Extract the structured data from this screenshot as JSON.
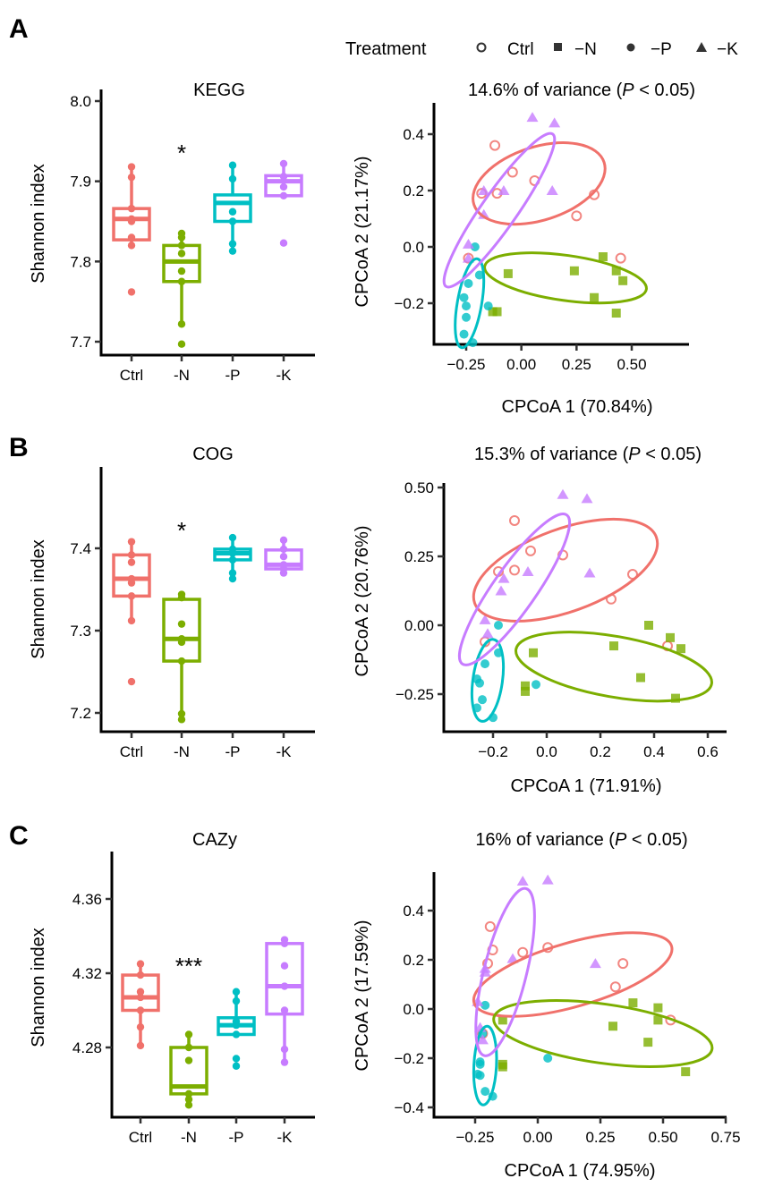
{
  "legend": {
    "title": "Treatment",
    "items": [
      {
        "label": "Ctrl",
        "shape": "open-circle"
      },
      {
        "label": "−N",
        "shape": "square"
      },
      {
        "label": "−P",
        "shape": "circle"
      },
      {
        "label": "−K",
        "shape": "triangle"
      }
    ]
  },
  "colors": {
    "Ctrl": "#F0716B",
    "-N": "#7CAE00",
    "-P": "#00BFC4",
    "-K": "#C77CFF"
  },
  "chart_data": [
    {
      "panel": "A",
      "type": "box",
      "title": "KEGG",
      "ylabel": "Shannon index",
      "categories": [
        "Ctrl",
        "-N",
        "-P",
        "-K"
      ],
      "yticks": [
        "7.7",
        "7.8",
        "7.9",
        "8.0"
      ],
      "ylim": [
        7.68,
        8.02
      ],
      "significance": {
        "category": "-N",
        "label": "*"
      },
      "boxes": [
        {
          "q1": 7.827,
          "median": 7.853,
          "q3": 7.866,
          "whisker_low": 7.82,
          "whisker_high": 7.918,
          "points": [
            7.918,
            7.905,
            7.866,
            7.853,
            7.85,
            7.83,
            7.82,
            7.762
          ]
        },
        {
          "q1": 7.775,
          "median": 7.8,
          "q3": 7.82,
          "whisker_low": 7.722,
          "whisker_high": 7.835,
          "points": [
            7.835,
            7.83,
            7.82,
            7.81,
            7.788,
            7.775,
            7.722,
            7.697
          ]
        },
        {
          "q1": 7.85,
          "median": 7.873,
          "q3": 7.883,
          "whisker_low": 7.813,
          "whisker_high": 7.92,
          "points": [
            7.92,
            7.903,
            7.862,
            7.85,
            7.822,
            7.813
          ]
        },
        {
          "q1": 7.882,
          "median": 7.9,
          "q3": 7.907,
          "whisker_low": 7.882,
          "whisker_high": 7.922,
          "points": [
            7.922,
            7.906,
            7.893,
            7.882,
            7.823
          ]
        }
      ]
    },
    {
      "panel": "A",
      "type": "scatter",
      "title_prefix": "14.6% of variance (",
      "title_italic": "P",
      "title_suffix": " < 0.05)",
      "xlabel": "CPCoA 1 (70.84%)",
      "ylabel": "CPCoA 2 (21.17%)",
      "xticks": [
        -0.25,
        0.0,
        0.25,
        0.5
      ],
      "xtick_labels": [
        "−0.25",
        "0.00",
        "0.25",
        "0.50"
      ],
      "yticks": [
        -0.2,
        0.0,
        0.2,
        0.4
      ],
      "ytick_labels": [
        "−0.2",
        "0.0",
        "0.2",
        "0.4"
      ],
      "xlim": [
        -0.33,
        0.65
      ],
      "ylim": [
        -0.35,
        0.49
      ],
      "series": [
        {
          "name": "Ctrl",
          "points": [
            [
              -0.12,
              0.36
            ],
            [
              -0.04,
              0.265
            ],
            [
              -0.18,
              0.19
            ],
            [
              -0.11,
              0.19
            ],
            [
              0.06,
              0.235
            ],
            [
              0.33,
              0.185
            ],
            [
              0.25,
              0.11
            ],
            [
              -0.24,
              -0.04
            ],
            [
              0.45,
              -0.04
            ]
          ],
          "ellipse": {
            "cx": 0.08,
            "cy": 0.225,
            "rx": 0.31,
            "ry": 0.13,
            "angle_deg": -18
          }
        },
        {
          "name": "-N",
          "points": [
            [
              -0.06,
              -0.095
            ],
            [
              0.24,
              -0.085
            ],
            [
              0.37,
              -0.035
            ],
            [
              0.43,
              -0.085
            ],
            [
              0.46,
              -0.12
            ],
            [
              0.33,
              -0.18
            ],
            [
              -0.13,
              -0.23
            ],
            [
              -0.11,
              -0.23
            ],
            [
              0.43,
              -0.235
            ]
          ],
          "ellipse": {
            "cx": 0.2,
            "cy": -0.11,
            "rx": 0.37,
            "ry": 0.08,
            "angle_deg": 8
          }
        },
        {
          "name": "-P",
          "points": [
            [
              -0.21,
              0.0
            ],
            [
              -0.19,
              -0.1
            ],
            [
              -0.24,
              -0.13
            ],
            [
              -0.26,
              -0.18
            ],
            [
              -0.25,
              -0.21
            ],
            [
              -0.25,
              -0.25
            ],
            [
              -0.26,
              -0.31
            ],
            [
              -0.22,
              -0.34
            ],
            [
              -0.15,
              -0.21
            ]
          ],
          "ellipse": {
            "cx": -0.235,
            "cy": -0.2,
            "rx": 0.055,
            "ry": 0.16,
            "angle_deg": 10
          }
        },
        {
          "name": "-K",
          "points": [
            [
              0.05,
              0.46
            ],
            [
              0.15,
              0.44
            ],
            [
              -0.17,
              0.2
            ],
            [
              -0.08,
              0.2
            ],
            [
              0.14,
              0.2
            ],
            [
              -0.17,
              0.115
            ],
            [
              -0.24,
              0.01
            ],
            [
              -0.24,
              -0.04
            ]
          ],
          "ellipse": {
            "cx": -0.1,
            "cy": 0.13,
            "rx": 0.08,
            "ry": 0.33,
            "angle_deg": 35
          }
        }
      ]
    },
    {
      "panel": "B",
      "type": "box",
      "title": "COG",
      "ylabel": "Shannon index",
      "categories": [
        "Ctrl",
        "-N",
        "-P",
        "-K"
      ],
      "yticks": [
        "7.2",
        "7.3",
        "7.4"
      ],
      "ylim": [
        7.178,
        7.495
      ],
      "significance": {
        "category": "-N",
        "label": "*"
      },
      "boxes": [
        {
          "q1": 7.342,
          "median": 7.363,
          "q3": 7.392,
          "whisker_low": 7.312,
          "whisker_high": 7.408,
          "points": [
            7.408,
            7.392,
            7.383,
            7.363,
            7.358,
            7.342,
            7.312,
            7.238
          ]
        },
        {
          "q1": 7.263,
          "median": 7.29,
          "q3": 7.338,
          "whisker_low": 7.192,
          "whisker_high": 7.344,
          "points": [
            7.344,
            7.34,
            7.308,
            7.29,
            7.286,
            7.263,
            7.199,
            7.192
          ]
        },
        {
          "q1": 7.386,
          "median": 7.394,
          "q3": 7.399,
          "whisker_low": 7.363,
          "whisker_high": 7.413,
          "points": [
            7.413,
            7.399,
            7.394,
            7.386,
            7.37,
            7.363
          ]
        },
        {
          "q1": 7.375,
          "median": 7.38,
          "q3": 7.398,
          "whisker_low": 7.37,
          "whisker_high": 7.41,
          "points": [
            7.41,
            7.399,
            7.39,
            7.38,
            7.375,
            7.37
          ]
        }
      ]
    },
    {
      "panel": "B",
      "type": "scatter",
      "title_prefix": "15.3% of variance (",
      "title_italic": "P",
      "title_suffix": " < 0.05)",
      "xlabel": "CPCoA 1 (71.91%)",
      "ylabel": "CPCoA 2 (20.76%)",
      "xticks": [
        -0.2,
        0.0,
        0.2,
        0.4,
        0.6
      ],
      "xtick_labels": [
        "−0.2",
        "0.0",
        "0.2",
        "0.4",
        "0.6"
      ],
      "yticks": [
        -0.25,
        0.0,
        0.25,
        0.5
      ],
      "ytick_labels": [
        "−0.25",
        "0.00",
        "0.25",
        "0.50"
      ],
      "xlim": [
        -0.38,
        0.65
      ],
      "ylim": [
        -0.39,
        0.52
      ],
      "series": [
        {
          "name": "Ctrl",
          "points": [
            [
              -0.12,
              0.38
            ],
            [
              -0.06,
              0.27
            ],
            [
              0.06,
              0.255
            ],
            [
              -0.18,
              0.195
            ],
            [
              -0.12,
              0.2
            ],
            [
              0.32,
              0.185
            ],
            [
              0.24,
              0.095
            ],
            [
              -0.23,
              -0.06
            ],
            [
              0.45,
              -0.075
            ]
          ],
          "ellipse": {
            "cx": 0.07,
            "cy": 0.2,
            "rx": 0.36,
            "ry": 0.15,
            "angle_deg": -20
          }
        },
        {
          "name": "-N",
          "points": [
            [
              0.38,
              0.0
            ],
            [
              0.46,
              -0.045
            ],
            [
              0.25,
              -0.075
            ],
            [
              0.5,
              -0.085
            ],
            [
              -0.05,
              -0.1
            ],
            [
              0.35,
              -0.19
            ],
            [
              -0.08,
              -0.22
            ],
            [
              -0.08,
              -0.24
            ],
            [
              0.48,
              -0.265
            ]
          ],
          "ellipse": {
            "cx": 0.25,
            "cy": -0.15,
            "rx": 0.37,
            "ry": 0.11,
            "angle_deg": 10
          }
        },
        {
          "name": "-P",
          "points": [
            [
              -0.18,
              0.0
            ],
            [
              -0.18,
              -0.1
            ],
            [
              -0.23,
              -0.14
            ],
            [
              -0.26,
              -0.195
            ],
            [
              -0.25,
              -0.21
            ],
            [
              -0.24,
              -0.27
            ],
            [
              -0.26,
              -0.3
            ],
            [
              -0.2,
              -0.335
            ],
            [
              -0.04,
              -0.215
            ]
          ],
          "ellipse": {
            "cx": -0.22,
            "cy": -0.2,
            "rx": 0.055,
            "ry": 0.15,
            "angle_deg": 8
          }
        },
        {
          "name": "-K",
          "points": [
            [
              0.06,
              0.475
            ],
            [
              0.15,
              0.46
            ],
            [
              -0.07,
              0.195
            ],
            [
              0.16,
              0.19
            ],
            [
              -0.16,
              0.17
            ],
            [
              -0.17,
              0.125
            ],
            [
              -0.23,
              0.02
            ],
            [
              -0.22,
              -0.03
            ]
          ],
          "ellipse": {
            "cx": -0.12,
            "cy": 0.13,
            "rx": 0.08,
            "ry": 0.33,
            "angle_deg": 35
          }
        }
      ]
    },
    {
      "panel": "C",
      "type": "box",
      "title": "CAZy",
      "ylabel": "Shannon index",
      "categories": [
        "Ctrl",
        "-N",
        "-P",
        "-K"
      ],
      "yticks": [
        "4.28",
        "4.32",
        "4.36"
      ],
      "ylim": [
        4.243,
        4.385
      ],
      "significance": {
        "category": "-N",
        "label": "***"
      },
      "boxes": [
        {
          "q1": 4.3,
          "median": 4.307,
          "q3": 4.319,
          "whisker_low": 4.281,
          "whisker_high": 4.325,
          "points": [
            4.325,
            4.319,
            4.31,
            4.307,
            4.3,
            4.291,
            4.281
          ]
        },
        {
          "q1": 4.255,
          "median": 4.259,
          "q3": 4.28,
          "whisker_low": 4.249,
          "whisker_high": 4.287,
          "points": [
            4.287,
            4.28,
            4.273,
            4.255,
            4.252,
            4.249
          ]
        },
        {
          "q1": 4.287,
          "median": 4.292,
          "q3": 4.296,
          "whisker_low": 4.287,
          "whisker_high": 4.31,
          "points": [
            4.31,
            4.305,
            4.294,
            4.292,
            4.287,
            4.274,
            4.27
          ]
        },
        {
          "q1": 4.298,
          "median": 4.313,
          "q3": 4.336,
          "whisker_low": 4.272,
          "whisker_high": 4.338,
          "points": [
            4.338,
            4.336,
            4.324,
            4.313,
            4.3,
            4.279,
            4.272
          ]
        }
      ]
    },
    {
      "panel": "C",
      "type": "scatter",
      "title_prefix": "16% of variance (",
      "title_italic": "P",
      "title_suffix": " < 0.05)",
      "xlabel": "CPCoA 1 (74.95%)",
      "ylabel": "CPCoA 2 (17.59%)",
      "xticks": [
        -0.25,
        0.0,
        0.25,
        0.5,
        0.75
      ],
      "xtick_labels": [
        "−0.25",
        "0.00",
        "0.25",
        "0.50",
        "0.75"
      ],
      "yticks": [
        -0.4,
        -0.2,
        0.0,
        0.2,
        0.4
      ],
      "ytick_labels": [
        "−0.4",
        "−0.2",
        "0.0",
        "0.2",
        "0.4"
      ],
      "xlim": [
        -0.42,
        0.78
      ],
      "ylim": [
        -0.43,
        0.56
      ],
      "series": [
        {
          "name": "Ctrl",
          "points": [
            [
              -0.19,
              0.335
            ],
            [
              -0.18,
              0.24
            ],
            [
              -0.06,
              0.23
            ],
            [
              0.04,
              0.25
            ],
            [
              -0.2,
              0.185
            ],
            [
              0.34,
              0.185
            ],
            [
              0.31,
              0.09
            ],
            [
              0.53,
              -0.045
            ],
            [
              -0.22,
              -0.1
            ]
          ],
          "ellipse": {
            "cx": 0.14,
            "cy": 0.14,
            "rx": 0.41,
            "ry": 0.13,
            "angle_deg": -16
          }
        },
        {
          "name": "-N",
          "points": [
            [
              0.38,
              0.025
            ],
            [
              0.48,
              0.005
            ],
            [
              0.48,
              -0.045
            ],
            [
              -0.14,
              -0.045
            ],
            [
              0.3,
              -0.07
            ],
            [
              0.44,
              -0.135
            ],
            [
              -0.14,
              -0.225
            ],
            [
              -0.14,
              -0.235
            ],
            [
              0.59,
              -0.255
            ]
          ],
          "ellipse": {
            "cx": 0.26,
            "cy": -0.1,
            "rx": 0.44,
            "ry": 0.12,
            "angle_deg": 8
          }
        },
        {
          "name": "-P",
          "points": [
            [
              -0.21,
              0.015
            ],
            [
              -0.22,
              -0.1
            ],
            [
              -0.23,
              -0.215
            ],
            [
              -0.23,
              -0.225
            ],
            [
              -0.24,
              -0.265
            ],
            [
              -0.23,
              -0.27
            ],
            [
              -0.21,
              -0.335
            ],
            [
              -0.18,
              -0.355
            ],
            [
              0.04,
              -0.2
            ]
          ],
          "ellipse": {
            "cx": -0.21,
            "cy": -0.23,
            "rx": 0.045,
            "ry": 0.16,
            "angle_deg": 3
          }
        },
        {
          "name": "-K",
          "points": [
            [
              -0.06,
              0.52
            ],
            [
              0.04,
              0.525
            ],
            [
              -0.1,
              0.205
            ],
            [
              0.23,
              0.185
            ],
            [
              -0.21,
              0.165
            ],
            [
              -0.21,
              0.15
            ],
            [
              -0.24,
              0.03
            ],
            [
              -0.23,
              -0.075
            ],
            [
              -0.22,
              -0.125
            ]
          ],
          "ellipse": {
            "cx": -0.13,
            "cy": 0.15,
            "rx": 0.085,
            "ry": 0.35,
            "angle_deg": 14
          }
        }
      ]
    }
  ],
  "panel_letters": [
    "A",
    "B",
    "C"
  ]
}
